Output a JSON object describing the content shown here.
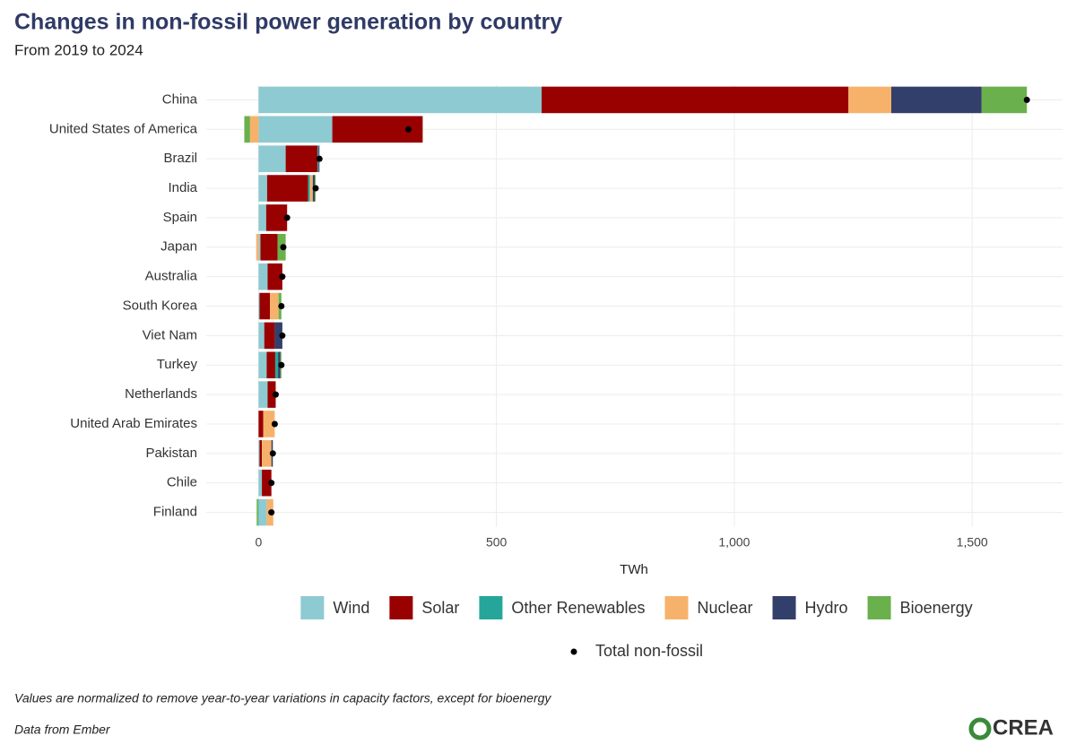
{
  "chart_data": {
    "type": "stacked_barh",
    "title": "Changes in non-fossil power generation by country",
    "subtitle": "From 2019 to 2024",
    "x_label": "TWh",
    "note": "Values are normalized to remove year-to-year variations in capacity factors, except for bioenergy",
    "source": "Data from Ember",
    "logo": "CREA",
    "categories": [
      "China",
      "United States of America",
      "Brazil",
      "India",
      "Spain",
      "Japan",
      "Australia",
      "South Korea",
      "Viet Nam",
      "Turkey",
      "Netherlands",
      "United Arab Emirates",
      "Pakistan",
      "Chile",
      "Finland"
    ],
    "series": [
      {
        "name": "Wind",
        "color": "#8ecad1",
        "values": [
          595,
          155,
          57,
          18,
          16,
          4,
          19,
          2,
          12,
          17,
          19,
          0,
          2,
          7,
          17
        ]
      },
      {
        "name": "Solar",
        "color": "#990000",
        "values": [
          645,
          190,
          67,
          86,
          44,
          36,
          31,
          22,
          22,
          18,
          17,
          10,
          5,
          20,
          0
        ]
      },
      {
        "name": "Other Renewables",
        "color": "#26a69a",
        "values": [
          0,
          0,
          2,
          4,
          0,
          0,
          0,
          0,
          0,
          6,
          0,
          0,
          0,
          0,
          -1
        ]
      },
      {
        "name": "Nuclear",
        "color": "#f6b26b",
        "values": [
          90,
          -18,
          0,
          6,
          0,
          -5,
          0,
          18,
          0,
          0,
          0,
          24,
          20,
          0,
          14
        ]
      },
      {
        "name": "Hydro",
        "color": "#333f6b",
        "values": [
          190,
          0,
          2,
          4,
          0,
          0,
          0,
          0,
          16,
          5,
          0,
          0,
          3,
          0,
          0
        ]
      },
      {
        "name": "Bioenergy",
        "color": "#6ab04c",
        "values": [
          95,
          -12,
          0,
          2,
          0,
          17,
          0,
          6,
          0,
          2,
          0,
          0,
          0,
          0,
          -3
        ]
      }
    ],
    "total": {
      "name": "Total non-fossil",
      "color": "#000000",
      "values": [
        1615,
        315,
        128,
        120,
        60,
        52,
        50,
        48,
        50,
        48,
        36,
        34,
        30,
        27,
        27
      ]
    },
    "xlim": [
      -110,
      1690
    ],
    "xticks": [
      0,
      500,
      {
        "value": 1000,
        "label": "1,000"
      },
      {
        "value": 1500,
        "label": "1,500"
      }
    ],
    "grid": true
  }
}
